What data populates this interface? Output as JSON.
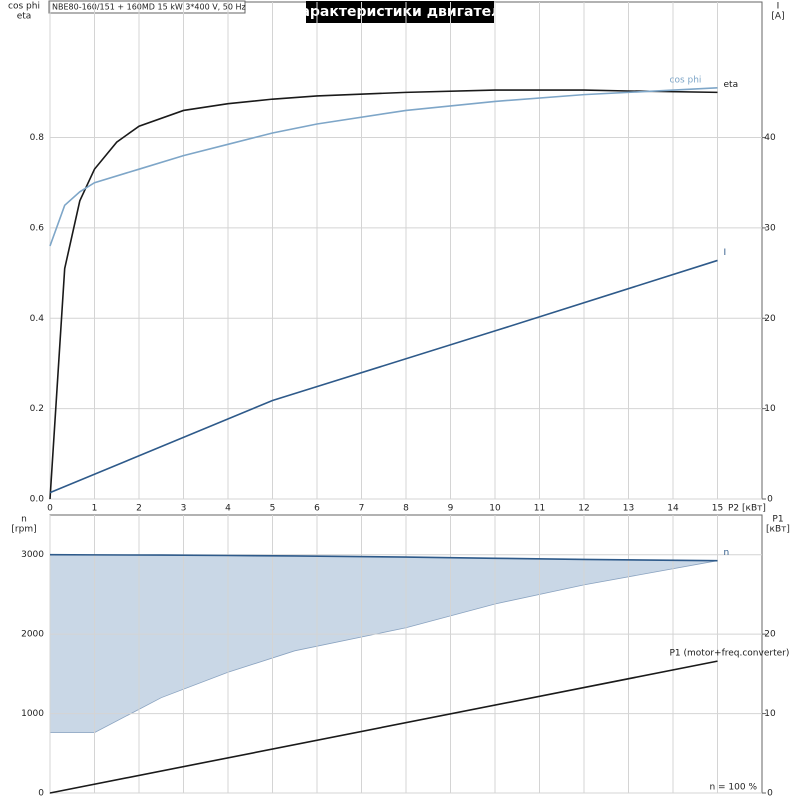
{
  "chart_data": [
    {
      "type": "line",
      "title": "Характеристики двигателя",
      "subtitle": "NBE80-160/151 + 160MD  15 kW  3*400 V, 50 Hz",
      "x_label": "P2 [кВт]",
      "y_label": [
        "cos phi",
        "eta"
      ],
      "y2_label": [
        "I",
        "[A]"
      ],
      "xlim": [
        0,
        16
      ],
      "xticks": [
        0,
        1,
        2,
        3,
        4,
        5,
        6,
        7,
        8,
        9,
        10,
        11,
        12,
        13,
        14,
        15
      ],
      "ylim": [
        0,
        1.1
      ],
      "yticks": [
        {
          "value": 0,
          "label": "0.0"
        },
        0.2,
        0.4,
        0.6,
        0.8
      ],
      "y2lim": [
        0,
        55
      ],
      "y2ticks": [
        0,
        10,
        20,
        30,
        40
      ],
      "grid": true,
      "series": [
        {
          "name": "eta",
          "color": "#1a1a1a",
          "x": [
            0,
            0.33,
            0.67,
            1,
            1.5,
            2,
            3,
            4,
            5,
            6,
            8,
            10,
            12,
            13,
            15
          ],
          "values": [
            0,
            0.51,
            0.66,
            0.73,
            0.79,
            0.825,
            0.86,
            0.875,
            0.885,
            0.892,
            0.9,
            0.905,
            0.905,
            0.903,
            0.9
          ]
        },
        {
          "name": "cos phi",
          "color": "#7ea6c8",
          "x": [
            0,
            0.33,
            0.67,
            1,
            2,
            3,
            4,
            5,
            6,
            8,
            10,
            12,
            15
          ],
          "values": [
            0.56,
            0.65,
            0.68,
            0.7,
            0.73,
            0.76,
            0.785,
            0.81,
            0.83,
            0.86,
            0.88,
            0.895,
            0.91
          ]
        },
        {
          "name": "I",
          "color": "#2e5a8a",
          "axis": "y2",
          "x": [
            0,
            5,
            10,
            15
          ],
          "values": [
            0.7,
            10.9,
            18.6,
            26.4
          ]
        }
      ]
    },
    {
      "type": "line",
      "y_label": [
        "n",
        "[rpm]"
      ],
      "y2_label": [
        "P1",
        "[кВт]"
      ],
      "annotation": "n = 100 %",
      "xlim": [
        0,
        16
      ],
      "xticks": [
        0,
        1,
        2,
        3,
        4,
        5,
        6,
        7,
        8,
        9,
        10,
        11,
        12,
        13,
        14,
        15
      ],
      "ylim": [
        0,
        3500
      ],
      "yticks": [
        0,
        1000,
        2000,
        3000
      ],
      "y2lim": [
        0,
        35
      ],
      "y2ticks": [
        0,
        10,
        20
      ],
      "grid": true,
      "band_color": "#c9d7e6",
      "band_lower": [
        760,
        760,
        1200,
        1520,
        1790,
        2080,
        2380,
        2620,
        2925
      ],
      "series": [
        {
          "name": "n",
          "color": "#2e5a8a",
          "x": [
            0,
            1,
            2.5,
            4,
            5.5,
            8,
            10,
            12,
            15
          ],
          "values": [
            3000,
            2998,
            2995,
            2990,
            2985,
            2970,
            2955,
            2940,
            2925
          ]
        },
        {
          "name": "P1 (motor+freq.converter)",
          "color": "#1a1a1a",
          "axis": "y2",
          "x": [
            0,
            15
          ],
          "values": [
            0,
            16.6
          ]
        }
      ]
    }
  ]
}
